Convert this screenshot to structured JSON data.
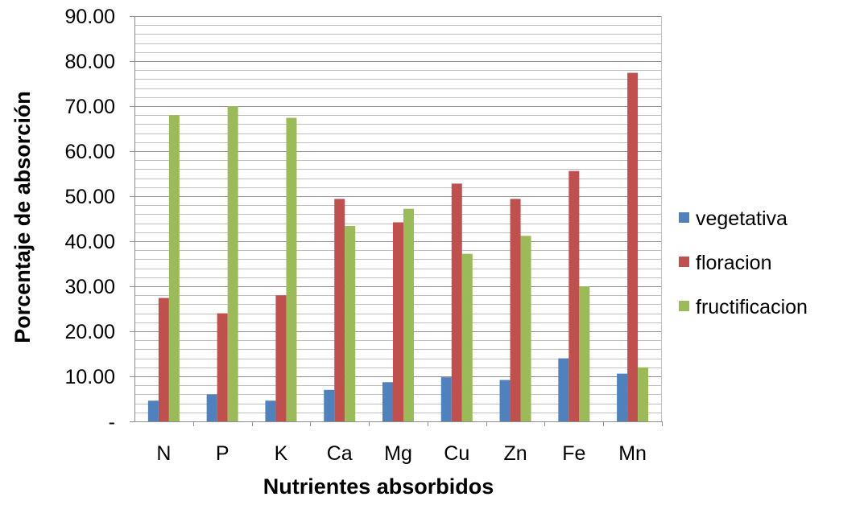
{
  "chart_data": {
    "type": "bar",
    "xlabel": "Nutrientes absorbidos",
    "ylabel": "Porcentaje de absorción",
    "categories": [
      "N",
      "P",
      "K",
      "Ca",
      "Mg",
      "Cu",
      "Zn",
      "Fe",
      "Mn"
    ],
    "ylim": [
      0,
      90
    ],
    "y_ticks": [
      {
        "value": 0,
        "label": "-"
      },
      {
        "value": 10,
        "label": "10.00"
      },
      {
        "value": 20,
        "label": "20.00"
      },
      {
        "value": 30,
        "label": "30.00"
      },
      {
        "value": 40,
        "label": "40.00"
      },
      {
        "value": 50,
        "label": "50.00"
      },
      {
        "value": 60,
        "label": "60.00"
      },
      {
        "value": 70,
        "label": "70.00"
      },
      {
        "value": 80,
        "label": "80.00"
      },
      {
        "value": 90,
        "label": "90.00"
      }
    ],
    "minor_grid_step": 2,
    "grid": true,
    "legend_position": "right",
    "series": [
      {
        "name": "vegetativa",
        "color": "#4f81bd",
        "values": [
          4.6,
          6.0,
          4.6,
          7.0,
          8.7,
          9.8,
          9.2,
          14.0,
          10.6
        ]
      },
      {
        "name": "floracion",
        "color": "#c0504d",
        "values": [
          27.4,
          24.0,
          28.0,
          49.4,
          44.2,
          52.8,
          49.4,
          55.6,
          77.4
        ]
      },
      {
        "name": "fructificacion",
        "color": "#9bbb59",
        "values": [
          68.0,
          70.0,
          67.4,
          43.4,
          47.2,
          37.2,
          41.2,
          30.0,
          12.0
        ]
      }
    ]
  }
}
